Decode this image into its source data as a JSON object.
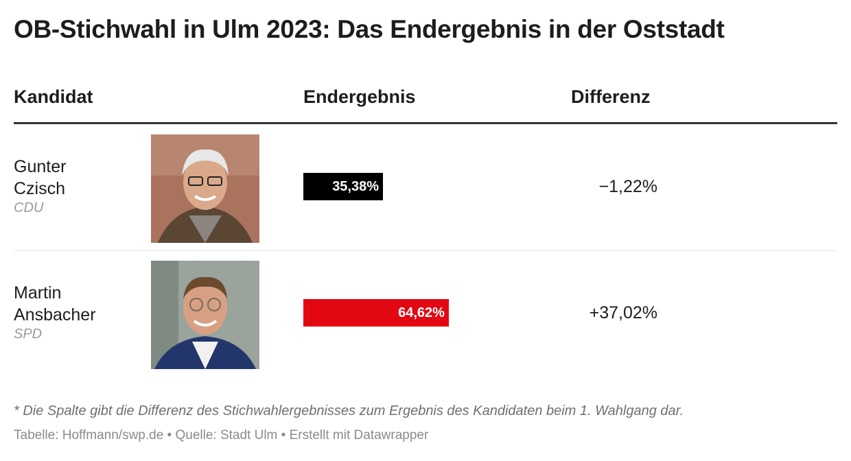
{
  "title": "OB-Stichwahl in Ulm 2023: Das Endergebnis in der Oststadt",
  "chart_data": {
    "type": "table",
    "columns": [
      "Kandidat",
      "Endergebnis",
      "Differenz"
    ],
    "rows": [
      {
        "name_first": "Gunter",
        "name_last": "Czisch",
        "party": "CDU",
        "value": 35.38,
        "value_label": "35,38%",
        "bar_color": "#000000",
        "diff_label": "−1,22%"
      },
      {
        "name_first": "Martin",
        "name_last": "Ansbacher",
        "party": "SPD",
        "value": 64.62,
        "value_label": "64,62%",
        "bar_color": "#e30613",
        "diff_label": "+37,02%"
      }
    ],
    "bar_range": [
      0,
      100
    ]
  },
  "footnote": "* Die Spalte gibt die Differenz des Stichwahlergebnisses zum Ergebnis des Kandidaten beim 1. Wahlgang dar.",
  "source": "Tabelle: Hoffmann/swp.de • Quelle: Stadt Ulm • Erstellt mit Datawrapper"
}
